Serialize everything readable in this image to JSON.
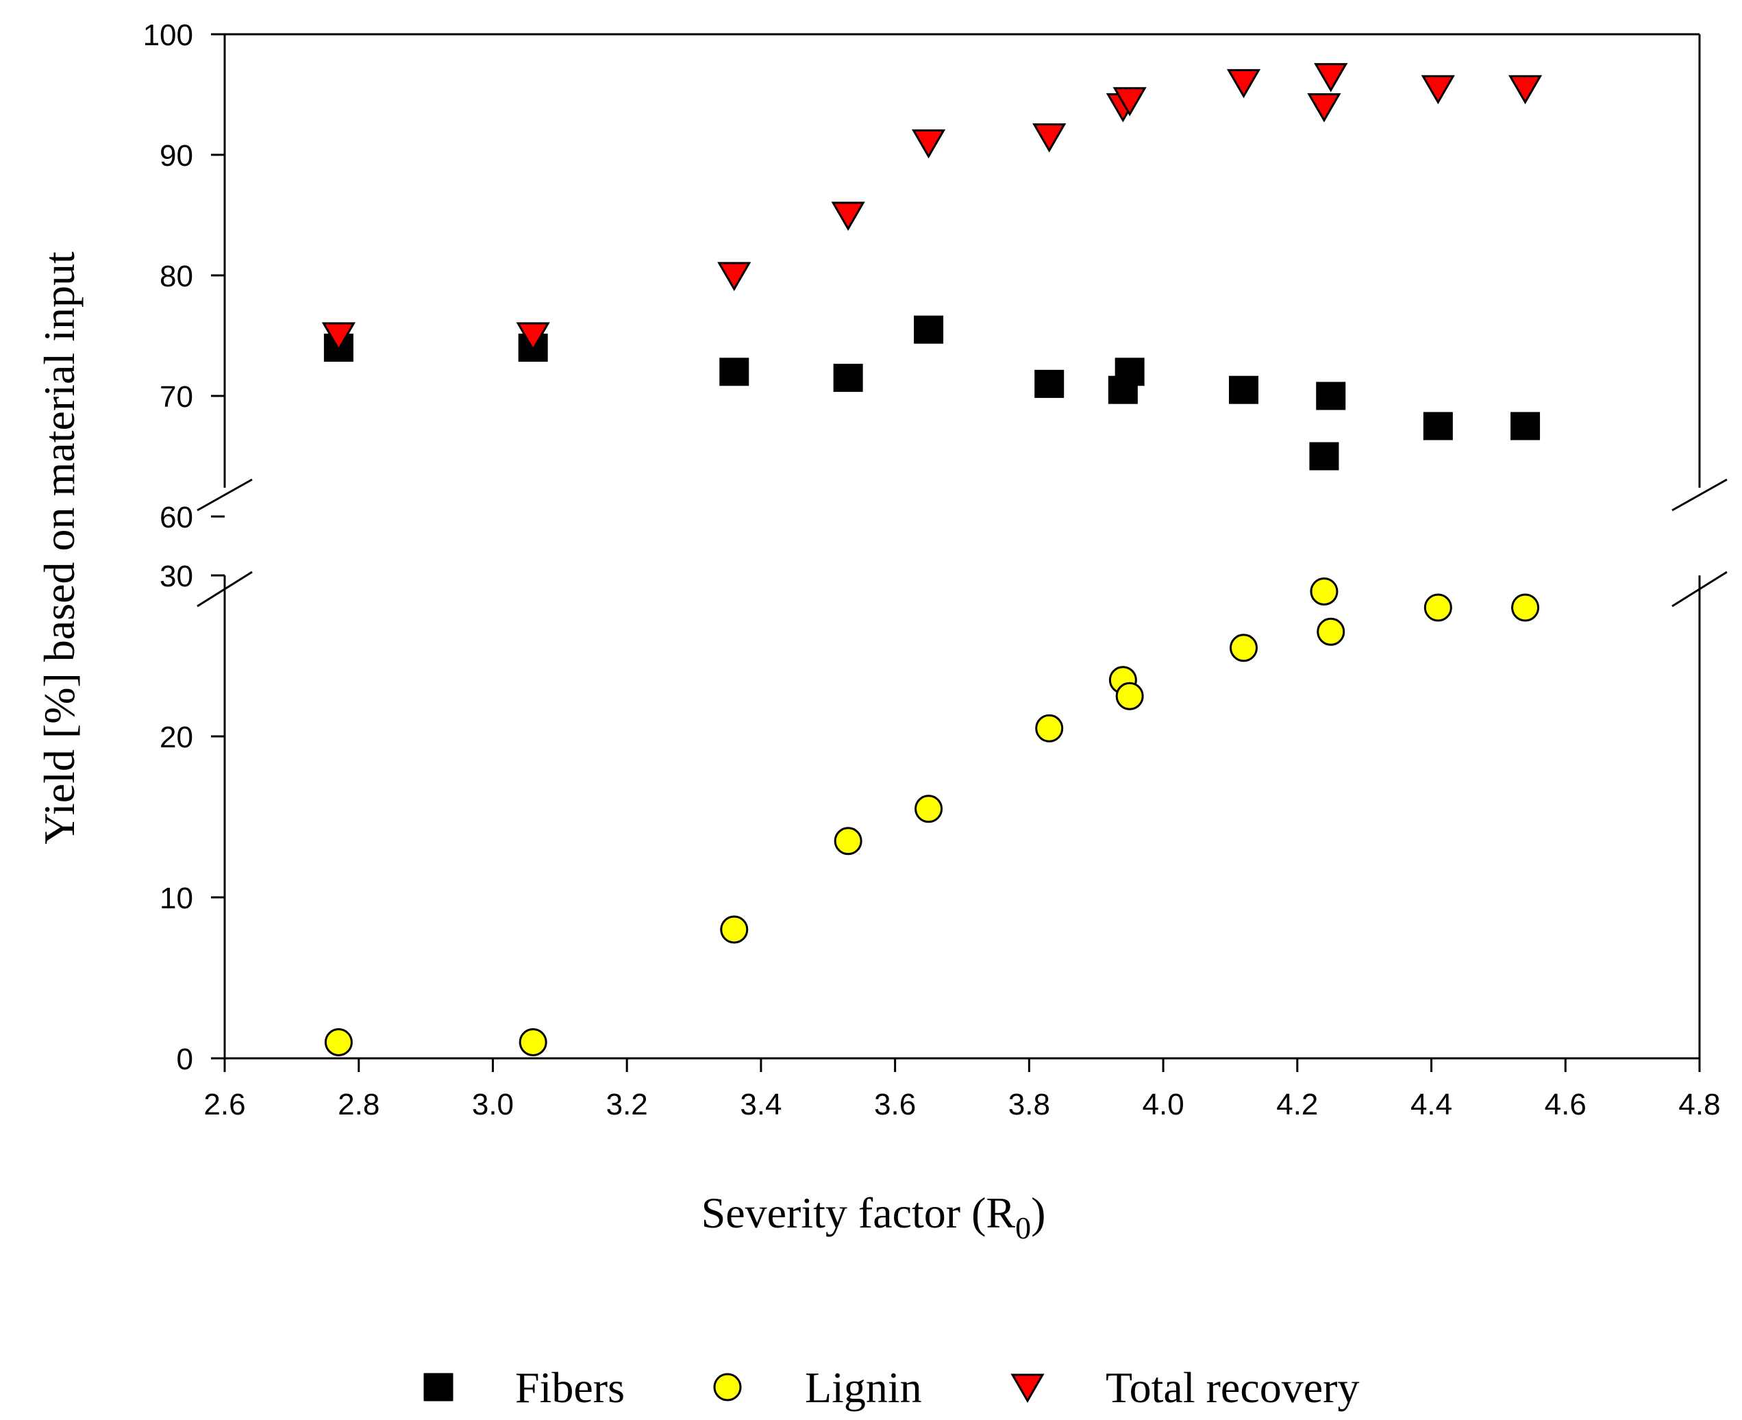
{
  "chart_data": {
    "type": "scatter",
    "title": "",
    "xlabel": "Severity factor (R",
    "xlabel_subscript": "0",
    "xlabel_suffix": ")",
    "ylabel": "Yield [%] based on material input",
    "xlim": [
      2.6,
      4.8
    ],
    "x_ticks": [
      "2.6",
      "2.8",
      "3.0",
      "3.2",
      "3.4",
      "3.6",
      "3.8",
      "4.0",
      "4.2",
      "4.4",
      "4.6",
      "4.8"
    ],
    "y_axis_break": {
      "lower_segment": [
        0,
        30
      ],
      "upper_segment": [
        60,
        100
      ]
    },
    "y_ticks_lower": [
      "0",
      "10",
      "20",
      "30"
    ],
    "y_ticks_upper": [
      "60",
      "70",
      "80",
      "90",
      "100"
    ],
    "grid": false,
    "legend_position": "bottom",
    "series": [
      {
        "name": "Fibers",
        "marker": "square",
        "color": "#000000",
        "points": [
          [
            2.77,
            74
          ],
          [
            3.06,
            74
          ],
          [
            3.36,
            72
          ],
          [
            3.53,
            71.5
          ],
          [
            3.65,
            75.5
          ],
          [
            3.83,
            71
          ],
          [
            3.94,
            70.5
          ],
          [
            3.95,
            72
          ],
          [
            4.12,
            70.5
          ],
          [
            4.24,
            65
          ],
          [
            4.25,
            70
          ],
          [
            4.41,
            67.5
          ],
          [
            4.54,
            67.5
          ]
        ]
      },
      {
        "name": "Lignin",
        "marker": "circle",
        "color": "#ffff00",
        "points": [
          [
            2.77,
            1
          ],
          [
            3.06,
            1
          ],
          [
            3.36,
            8
          ],
          [
            3.53,
            13.5
          ],
          [
            3.65,
            15.5
          ],
          [
            3.83,
            20.5
          ],
          [
            3.94,
            23.5
          ],
          [
            3.95,
            22.5
          ],
          [
            4.12,
            25.5
          ],
          [
            4.24,
            29
          ],
          [
            4.25,
            26.5
          ],
          [
            4.41,
            28
          ],
          [
            4.54,
            28
          ]
        ]
      },
      {
        "name": "Total recovery",
        "marker": "triangle-down",
        "color": "#ff0000",
        "points": [
          [
            2.77,
            75
          ],
          [
            3.06,
            75
          ],
          [
            3.36,
            80
          ],
          [
            3.53,
            85
          ],
          [
            3.65,
            91
          ],
          [
            3.83,
            91.5
          ],
          [
            3.94,
            94
          ],
          [
            3.95,
            94.5
          ],
          [
            4.12,
            96
          ],
          [
            4.24,
            94
          ],
          [
            4.25,
            96.5
          ],
          [
            4.41,
            95.5
          ],
          [
            4.54,
            95.5
          ]
        ]
      }
    ]
  }
}
